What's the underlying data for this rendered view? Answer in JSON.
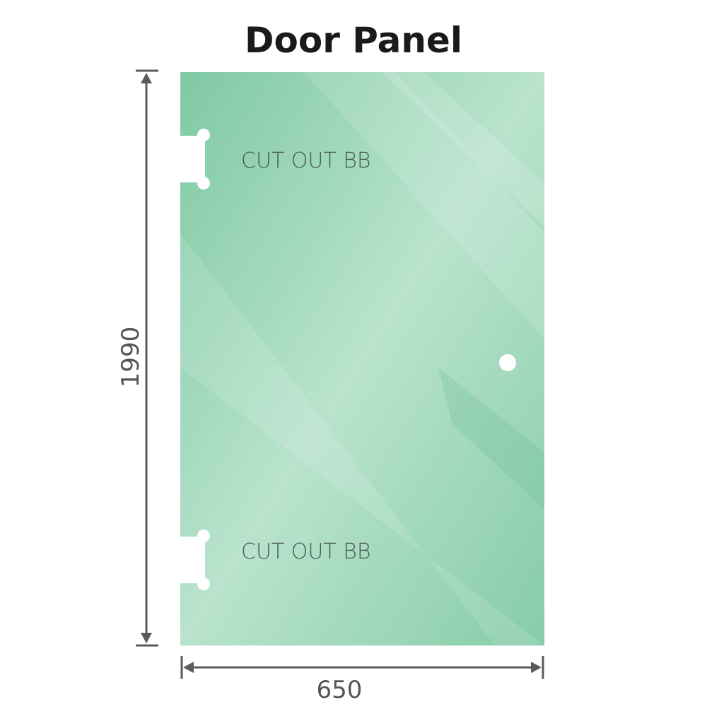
{
  "title": "Door Panel",
  "panel": {
    "color": "#86cca8",
    "cutouts": [
      {
        "label": "CUT OUT BB"
      },
      {
        "label": "CUT OUT BB"
      }
    ]
  },
  "dimensions": {
    "height": "1990",
    "width": "650",
    "line_color": "#5a5a5a"
  }
}
